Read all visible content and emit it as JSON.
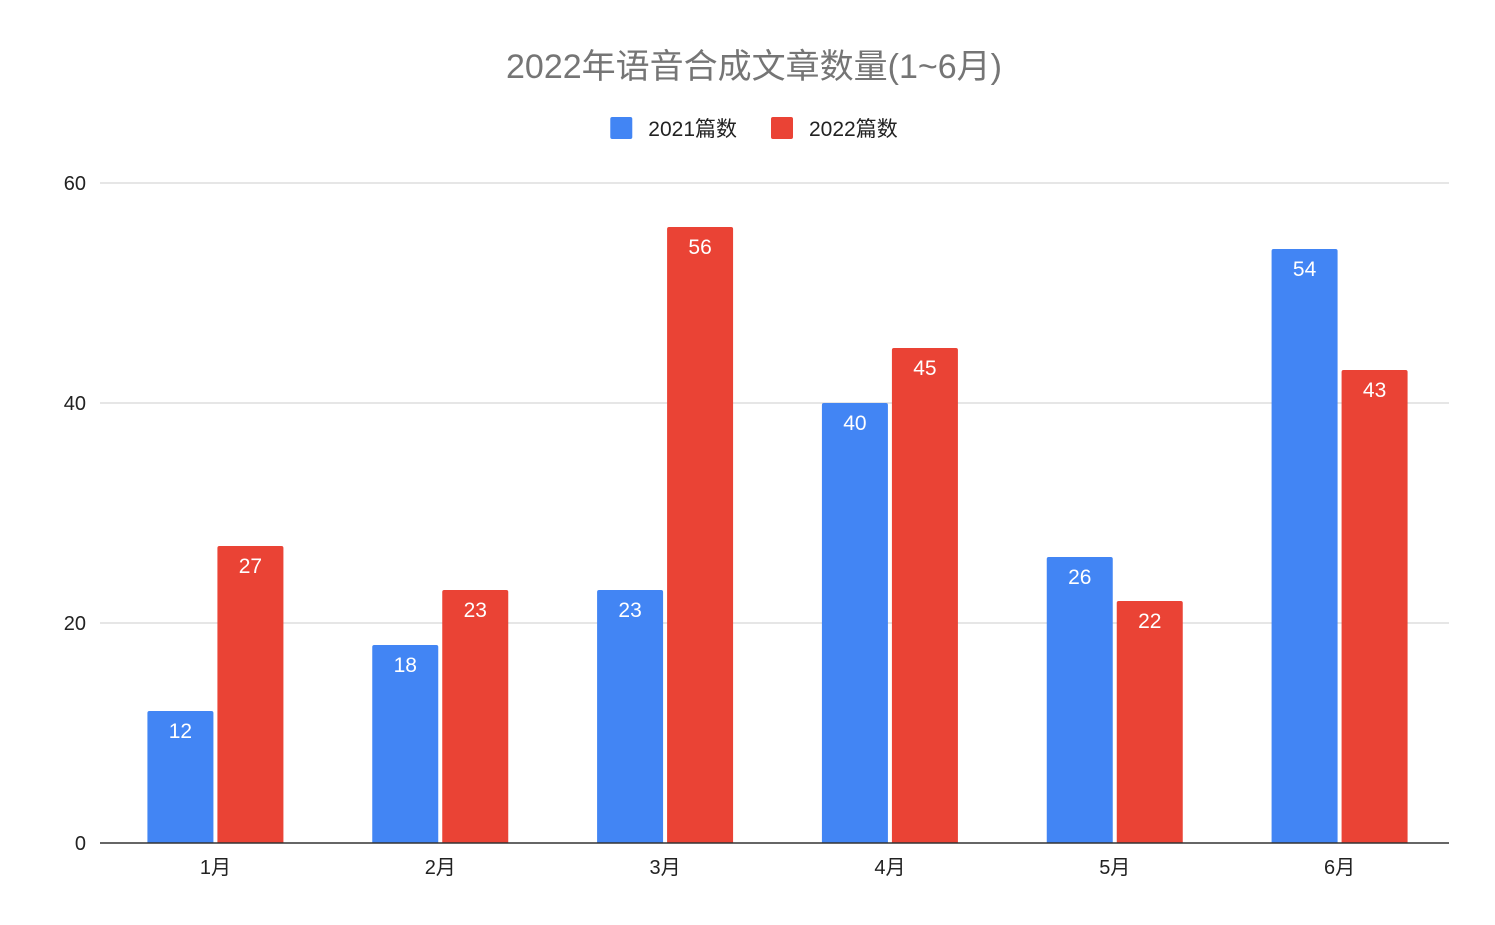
{
  "chart_data": {
    "type": "bar",
    "title": "2022年语音合成文章数量(1~6月)",
    "xlabel": "",
    "ylabel": "",
    "categories": [
      "1月",
      "2月",
      "3月",
      "4月",
      "5月",
      "6月"
    ],
    "series": [
      {
        "name": "2021篇数",
        "color": "#4285f4",
        "values": [
          12,
          18,
          23,
          40,
          26,
          54
        ]
      },
      {
        "name": "2022篇数",
        "color": "#ea4335",
        "values": [
          27,
          23,
          56,
          45,
          22,
          43
        ]
      }
    ],
    "ylim": [
      0,
      60
    ],
    "yticks": [
      0,
      20,
      40,
      60
    ],
    "grid": true,
    "legend_position": "top-center",
    "data_labels": true
  }
}
